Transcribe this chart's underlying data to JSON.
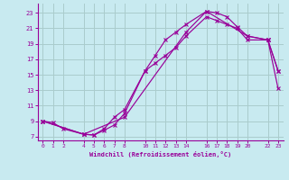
{
  "xlabel": "Windchill (Refroidissement éolien,°C)",
  "bg_color": "#c8eaf0",
  "line_color": "#990099",
  "grid_color": "#aacccc",
  "xticks": [
    0,
    1,
    2,
    4,
    5,
    6,
    7,
    8,
    10,
    11,
    12,
    13,
    14,
    16,
    17,
    18,
    19,
    20,
    22,
    23
  ],
  "yticks": [
    7,
    9,
    11,
    13,
    15,
    17,
    19,
    21,
    23
  ],
  "xlim": [
    -0.5,
    23.5
  ],
  "ylim": [
    6.5,
    24.2
  ],
  "line1_x": [
    0,
    1,
    2,
    4,
    5,
    6,
    7,
    8,
    10,
    11,
    12,
    13,
    14,
    16,
    17,
    18,
    19,
    20,
    22,
    23
  ],
  "line1_y": [
    9,
    8.8,
    8.0,
    7.3,
    7.2,
    7.8,
    8.5,
    10.0,
    15.5,
    17.5,
    19.5,
    20.5,
    21.5,
    23.2,
    23.0,
    22.5,
    21.2,
    20.0,
    19.5,
    15.5
  ],
  "line2_x": [
    0,
    4,
    5,
    6,
    7,
    8,
    10,
    11,
    12,
    13,
    14,
    16,
    17,
    18,
    19,
    20,
    22,
    23
  ],
  "line2_y": [
    9,
    7.3,
    7.2,
    8.0,
    9.5,
    10.5,
    15.5,
    16.5,
    17.5,
    18.5,
    20.0,
    22.5,
    22.0,
    21.5,
    21.0,
    19.5,
    19.5,
    15.5
  ],
  "line3_x": [
    0,
    4,
    8,
    14,
    16,
    20,
    22,
    23
  ],
  "line3_y": [
    9,
    7.3,
    9.5,
    20.5,
    23.2,
    20.0,
    19.5,
    13.2
  ]
}
